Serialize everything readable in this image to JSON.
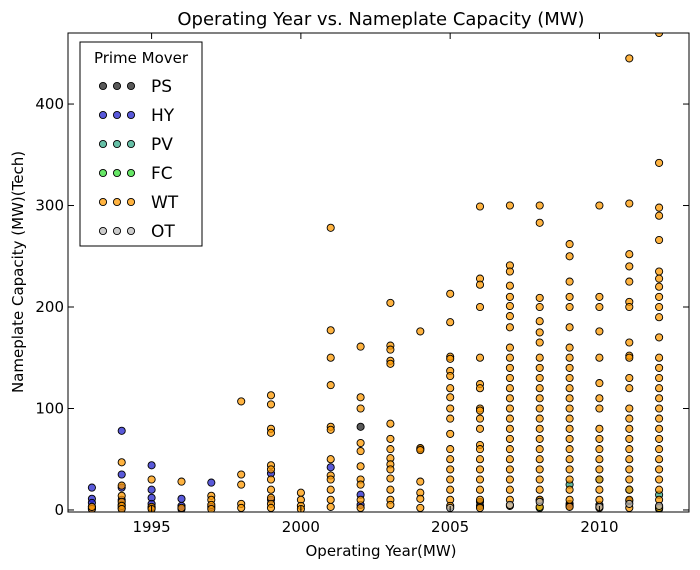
{
  "chart_data": {
    "type": "scatter",
    "title": "Operating Year vs. Nameplate Capacity (MW)",
    "xlabel": "Operating Year(MW)",
    "ylabel": "Nameplate Capacity (MW)(Tech)",
    "xlim": [
      1992.2,
      2013.0
    ],
    "ylim": [
      -2,
      470
    ],
    "xticks": [
      1995,
      2000,
      2005,
      2010
    ],
    "yticks": [
      0,
      100,
      200,
      300,
      400
    ],
    "grid": false,
    "legend": {
      "title": "Prime Mover",
      "position": "top-left"
    },
    "series": [
      {
        "name": "PS",
        "color": "#222222",
        "points": [
          [
            2002,
            82
          ],
          [
            2006,
            8
          ],
          [
            2006,
            4
          ],
          [
            2008,
            10
          ],
          [
            2009,
            6
          ],
          [
            2010,
            5
          ],
          [
            2012,
            3
          ],
          [
            2011,
            9
          ]
        ]
      },
      {
        "name": "HY",
        "color": "#2222cc",
        "points": [
          [
            1993,
            22
          ],
          [
            1993,
            11
          ],
          [
            1993,
            7
          ],
          [
            1993,
            3
          ],
          [
            1993,
            1
          ],
          [
            1994,
            78
          ],
          [
            1994,
            35
          ],
          [
            1994,
            22
          ],
          [
            1994,
            10
          ],
          [
            1994,
            5
          ],
          [
            1994,
            2
          ],
          [
            1995,
            44
          ],
          [
            1995,
            20
          ],
          [
            1995,
            12
          ],
          [
            1995,
            6
          ],
          [
            1995,
            2
          ],
          [
            1996,
            11
          ],
          [
            1996,
            4
          ],
          [
            1996,
            1
          ],
          [
            1997,
            27
          ],
          [
            1997,
            3
          ],
          [
            1999,
            36
          ],
          [
            1999,
            10
          ],
          [
            2001,
            42
          ],
          [
            2002,
            15
          ],
          [
            2002,
            5
          ],
          [
            2004,
            60
          ],
          [
            2009,
            4
          ]
        ]
      },
      {
        "name": "PV",
        "color": "#33aa88",
        "points": [
          [
            2010,
            30
          ],
          [
            2011,
            20
          ],
          [
            2012,
            15
          ],
          [
            2009,
            25
          ]
        ]
      },
      {
        "name": "FC",
        "color": "#33dd33",
        "points": [
          [
            2008,
            2
          ],
          [
            2012,
            1
          ]
        ]
      },
      {
        "name": "WT",
        "color": "#ff9900",
        "points": [
          [
            1993,
            1
          ],
          [
            1993,
            3
          ],
          [
            1994,
            47
          ],
          [
            1994,
            24
          ],
          [
            1994,
            14
          ],
          [
            1994,
            8
          ],
          [
            1994,
            4
          ],
          [
            1994,
            1
          ],
          [
            1995,
            30
          ],
          [
            1995,
            3
          ],
          [
            1995,
            1
          ],
          [
            1996,
            28
          ],
          [
            1996,
            2
          ],
          [
            1997,
            14
          ],
          [
            1997,
            10
          ],
          [
            1997,
            5
          ],
          [
            1997,
            1
          ],
          [
            1998,
            107
          ],
          [
            1998,
            35
          ],
          [
            1998,
            25
          ],
          [
            1998,
            6
          ],
          [
            1998,
            2
          ],
          [
            1999,
            113
          ],
          [
            1999,
            104
          ],
          [
            1999,
            80
          ],
          [
            1999,
            76
          ],
          [
            1999,
            44
          ],
          [
            1999,
            40
          ],
          [
            1999,
            30
          ],
          [
            1999,
            20
          ],
          [
            1999,
            12
          ],
          [
            1999,
            6
          ],
          [
            1999,
            2
          ],
          [
            2000,
            17
          ],
          [
            2000,
            10
          ],
          [
            2000,
            4
          ],
          [
            2000,
            1
          ],
          [
            2001,
            278
          ],
          [
            2001,
            177
          ],
          [
            2001,
            150
          ],
          [
            2001,
            123
          ],
          [
            2001,
            82
          ],
          [
            2001,
            79
          ],
          [
            2001,
            50
          ],
          [
            2001,
            34
          ],
          [
            2001,
            30
          ],
          [
            2001,
            20
          ],
          [
            2001,
            10
          ],
          [
            2001,
            3
          ],
          [
            2002,
            161
          ],
          [
            2002,
            111
          ],
          [
            2002,
            100
          ],
          [
            2002,
            66
          ],
          [
            2002,
            58
          ],
          [
            2002,
            43
          ],
          [
            2002,
            30
          ],
          [
            2002,
            25
          ],
          [
            2002,
            10
          ],
          [
            2002,
            2
          ],
          [
            2003,
            204
          ],
          [
            2003,
            162
          ],
          [
            2003,
            158
          ],
          [
            2003,
            147
          ],
          [
            2003,
            144
          ],
          [
            2003,
            85
          ],
          [
            2003,
            70
          ],
          [
            2003,
            60
          ],
          [
            2003,
            51
          ],
          [
            2003,
            45
          ],
          [
            2003,
            40
          ],
          [
            2003,
            31
          ],
          [
            2003,
            20
          ],
          [
            2003,
            10
          ],
          [
            2003,
            5
          ],
          [
            2004,
            176
          ],
          [
            2004,
            61
          ],
          [
            2004,
            59
          ],
          [
            2004,
            28
          ],
          [
            2004,
            17
          ],
          [
            2004,
            11
          ],
          [
            2004,
            2
          ],
          [
            2005,
            213
          ],
          [
            2005,
            185
          ],
          [
            2005,
            151
          ],
          [
            2005,
            149
          ],
          [
            2005,
            137
          ],
          [
            2005,
            132
          ],
          [
            2005,
            120
          ],
          [
            2005,
            111
          ],
          [
            2005,
            100
          ],
          [
            2005,
            90
          ],
          [
            2005,
            75
          ],
          [
            2005,
            60
          ],
          [
            2005,
            50
          ],
          [
            2005,
            40
          ],
          [
            2005,
            30
          ],
          [
            2005,
            20
          ],
          [
            2005,
            10
          ],
          [
            2005,
            4
          ],
          [
            2006,
            299
          ],
          [
            2006,
            228
          ],
          [
            2006,
            222
          ],
          [
            2006,
            200
          ],
          [
            2006,
            150
          ],
          [
            2006,
            124
          ],
          [
            2006,
            120
          ],
          [
            2006,
            100
          ],
          [
            2006,
            98
          ],
          [
            2006,
            90
          ],
          [
            2006,
            80
          ],
          [
            2006,
            64
          ],
          [
            2006,
            60
          ],
          [
            2006,
            50
          ],
          [
            2006,
            40
          ],
          [
            2006,
            30
          ],
          [
            2006,
            20
          ],
          [
            2006,
            10
          ],
          [
            2006,
            2
          ],
          [
            2007,
            300
          ],
          [
            2007,
            241
          ],
          [
            2007,
            235
          ],
          [
            2007,
            221
          ],
          [
            2007,
            210
          ],
          [
            2007,
            201
          ],
          [
            2007,
            191
          ],
          [
            2007,
            180
          ],
          [
            2007,
            160
          ],
          [
            2007,
            150
          ],
          [
            2007,
            140
          ],
          [
            2007,
            130
          ],
          [
            2007,
            120
          ],
          [
            2007,
            110
          ],
          [
            2007,
            100
          ],
          [
            2007,
            90
          ],
          [
            2007,
            80
          ],
          [
            2007,
            70
          ],
          [
            2007,
            60
          ],
          [
            2007,
            50
          ],
          [
            2007,
            40
          ],
          [
            2007,
            30
          ],
          [
            2007,
            20
          ],
          [
            2007,
            10
          ],
          [
            2007,
            4
          ],
          [
            2008,
            300
          ],
          [
            2008,
            283
          ],
          [
            2008,
            209
          ],
          [
            2008,
            200
          ],
          [
            2008,
            186
          ],
          [
            2008,
            175
          ],
          [
            2008,
            165
          ],
          [
            2008,
            150
          ],
          [
            2008,
            140
          ],
          [
            2008,
            130
          ],
          [
            2008,
            120
          ],
          [
            2008,
            110
          ],
          [
            2008,
            100
          ],
          [
            2008,
            90
          ],
          [
            2008,
            80
          ],
          [
            2008,
            70
          ],
          [
            2008,
            60
          ],
          [
            2008,
            50
          ],
          [
            2008,
            40
          ],
          [
            2008,
            30
          ],
          [
            2008,
            20
          ],
          [
            2008,
            10
          ],
          [
            2008,
            3
          ],
          [
            2009,
            262
          ],
          [
            2009,
            250
          ],
          [
            2009,
            225
          ],
          [
            2009,
            210
          ],
          [
            2009,
            200
          ],
          [
            2009,
            180
          ],
          [
            2009,
            160
          ],
          [
            2009,
            150
          ],
          [
            2009,
            140
          ],
          [
            2009,
            130
          ],
          [
            2009,
            120
          ],
          [
            2009,
            110
          ],
          [
            2009,
            100
          ],
          [
            2009,
            90
          ],
          [
            2009,
            80
          ],
          [
            2009,
            70
          ],
          [
            2009,
            60
          ],
          [
            2009,
            50
          ],
          [
            2009,
            40
          ],
          [
            2009,
            30
          ],
          [
            2009,
            20
          ],
          [
            2009,
            10
          ],
          [
            2009,
            3
          ],
          [
            2010,
            300
          ],
          [
            2010,
            210
          ],
          [
            2010,
            200
          ],
          [
            2010,
            176
          ],
          [
            2010,
            150
          ],
          [
            2010,
            125
          ],
          [
            2010,
            110
          ],
          [
            2010,
            100
          ],
          [
            2010,
            80
          ],
          [
            2010,
            70
          ],
          [
            2010,
            60
          ],
          [
            2010,
            50
          ],
          [
            2010,
            40
          ],
          [
            2010,
            30
          ],
          [
            2010,
            20
          ],
          [
            2010,
            10
          ],
          [
            2010,
            2
          ],
          [
            2011,
            445
          ],
          [
            2011,
            302
          ],
          [
            2011,
            252
          ],
          [
            2011,
            240
          ],
          [
            2011,
            225
          ],
          [
            2011,
            205
          ],
          [
            2011,
            200
          ],
          [
            2011,
            165
          ],
          [
            2011,
            152
          ],
          [
            2011,
            150
          ],
          [
            2011,
            130
          ],
          [
            2011,
            120
          ],
          [
            2011,
            100
          ],
          [
            2011,
            90
          ],
          [
            2011,
            80
          ],
          [
            2011,
            70
          ],
          [
            2011,
            60
          ],
          [
            2011,
            50
          ],
          [
            2011,
            40
          ],
          [
            2011,
            30
          ],
          [
            2011,
            20
          ],
          [
            2011,
            10
          ],
          [
            2011,
            2
          ],
          [
            2012,
            470
          ],
          [
            2012,
            342
          ],
          [
            2012,
            298
          ],
          [
            2012,
            290
          ],
          [
            2012,
            266
          ],
          [
            2012,
            235
          ],
          [
            2012,
            228
          ],
          [
            2012,
            220
          ],
          [
            2012,
            210
          ],
          [
            2012,
            200
          ],
          [
            2012,
            190
          ],
          [
            2012,
            170
          ],
          [
            2012,
            150
          ],
          [
            2012,
            140
          ],
          [
            2012,
            130
          ],
          [
            2012,
            120
          ],
          [
            2012,
            110
          ],
          [
            2012,
            100
          ],
          [
            2012,
            90
          ],
          [
            2012,
            80
          ],
          [
            2012,
            70
          ],
          [
            2012,
            60
          ],
          [
            2012,
            50
          ],
          [
            2012,
            40
          ],
          [
            2012,
            30
          ],
          [
            2012,
            20
          ],
          [
            2012,
            10
          ],
          [
            2012,
            2
          ]
        ]
      },
      {
        "name": "OT",
        "color": "#bbbbbb",
        "points": [
          [
            2005,
            2
          ],
          [
            2007,
            5
          ],
          [
            2008,
            8
          ],
          [
            2010,
            3
          ],
          [
            2011,
            6
          ],
          [
            2012,
            4
          ]
        ]
      }
    ]
  }
}
